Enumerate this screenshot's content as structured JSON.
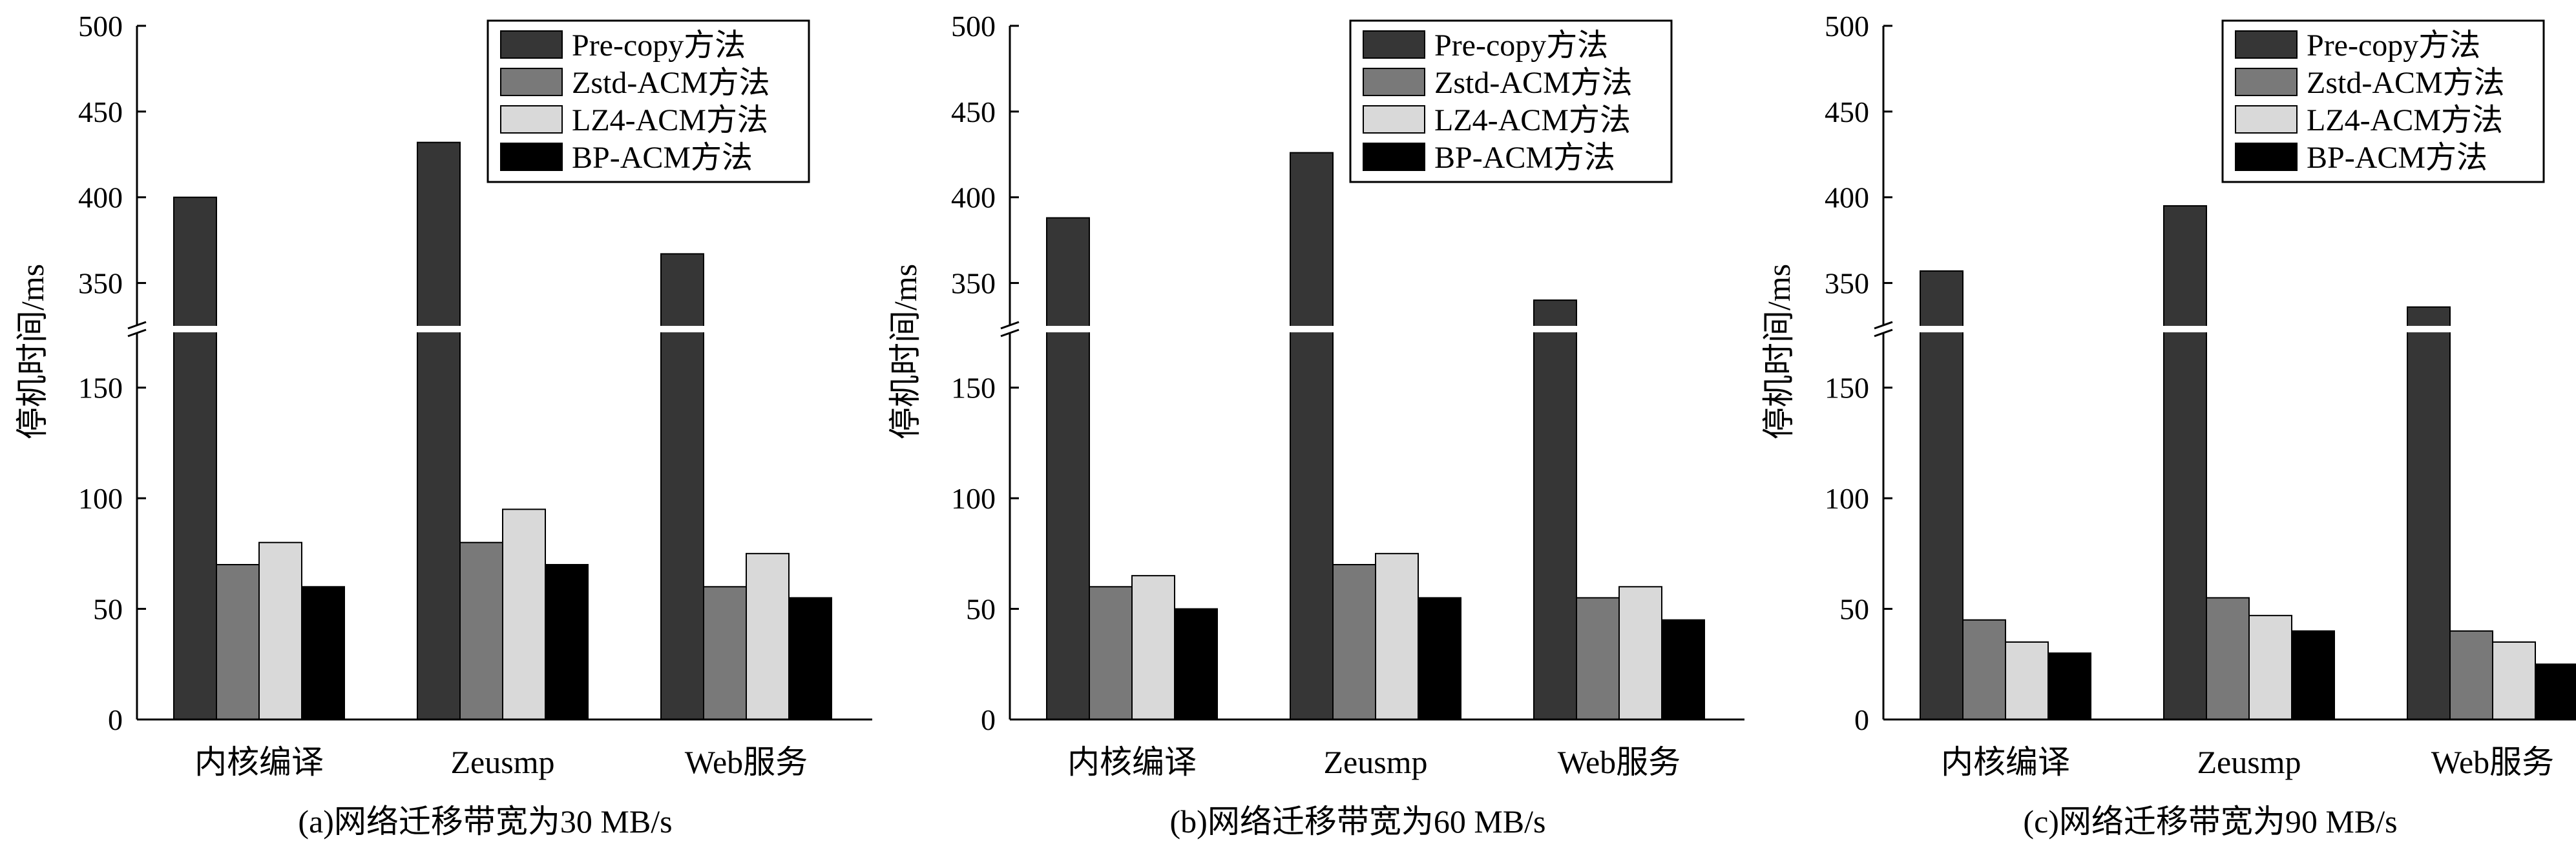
{
  "chart_data": [
    {
      "type": "bar",
      "title": "",
      "caption": "(a)网络迁移带宽为30 MB/s",
      "ylabel": "停机时间/ms",
      "xlabel": "",
      "categories": [
        "内核编译",
        "Zeusmp",
        "Web服务"
      ],
      "axis_break": {
        "lower": [
          0,
          175
        ],
        "upper": [
          325,
          500
        ]
      },
      "yticks_lower": [
        "0",
        "50",
        "100",
        "150"
      ],
      "yticks_upper": [
        "350",
        "400",
        "450",
        "500"
      ],
      "legend_position": "top-right",
      "grid": false,
      "series": [
        {
          "name": "Pre-copy方法",
          "color": "#363636",
          "values": [
            400,
            432,
            367
          ]
        },
        {
          "name": "Zstd-ACM方法",
          "color": "#797979",
          "values": [
            70,
            80,
            60
          ]
        },
        {
          "name": "LZ4-ACM方法",
          "color": "#d9d9d9",
          "values": [
            80,
            95,
            75
          ]
        },
        {
          "name": "BP-ACM方法",
          "color": "#000000",
          "values": [
            60,
            70,
            55
          ]
        }
      ]
    },
    {
      "type": "bar",
      "title": "",
      "caption": "(b)网络迁移带宽为60 MB/s",
      "ylabel": "停机时间/ms",
      "xlabel": "",
      "categories": [
        "内核编译",
        "Zeusmp",
        "Web服务"
      ],
      "axis_break": {
        "lower": [
          0,
          175
        ],
        "upper": [
          325,
          500
        ]
      },
      "yticks_lower": [
        "0",
        "50",
        "100",
        "150"
      ],
      "yticks_upper": [
        "350",
        "400",
        "450",
        "500"
      ],
      "legend_position": "top-right",
      "grid": false,
      "series": [
        {
          "name": "Pre-copy方法",
          "color": "#363636",
          "values": [
            388,
            426,
            340
          ]
        },
        {
          "name": "Zstd-ACM方法",
          "color": "#797979",
          "values": [
            60,
            70,
            55
          ]
        },
        {
          "name": "LZ4-ACM方法",
          "color": "#d9d9d9",
          "values": [
            65,
            75,
            60
          ]
        },
        {
          "name": "BP-ACM方法",
          "color": "#000000",
          "values": [
            50,
            55,
            45
          ]
        }
      ]
    },
    {
      "type": "bar",
      "title": "",
      "caption": "(c)网络迁移带宽为90 MB/s",
      "ylabel": "停机时间/ms",
      "xlabel": "",
      "categories": [
        "内核编译",
        "Zeusmp",
        "Web服务"
      ],
      "axis_break": {
        "lower": [
          0,
          175
        ],
        "upper": [
          325,
          500
        ]
      },
      "yticks_lower": [
        "0",
        "50",
        "100",
        "150"
      ],
      "yticks_upper": [
        "350",
        "400",
        "450",
        "500"
      ],
      "legend_position": "top-right",
      "grid": false,
      "series": [
        {
          "name": "Pre-copy方法",
          "color": "#363636",
          "values": [
            357,
            395,
            336
          ]
        },
        {
          "name": "Zstd-ACM方法",
          "color": "#797979",
          "values": [
            45,
            55,
            40
          ]
        },
        {
          "name": "LZ4-ACM方法",
          "color": "#d9d9d9",
          "values": [
            35,
            47,
            35
          ]
        },
        {
          "name": "BP-ACM方法",
          "color": "#000000",
          "values": [
            30,
            40,
            25
          ]
        }
      ]
    }
  ]
}
